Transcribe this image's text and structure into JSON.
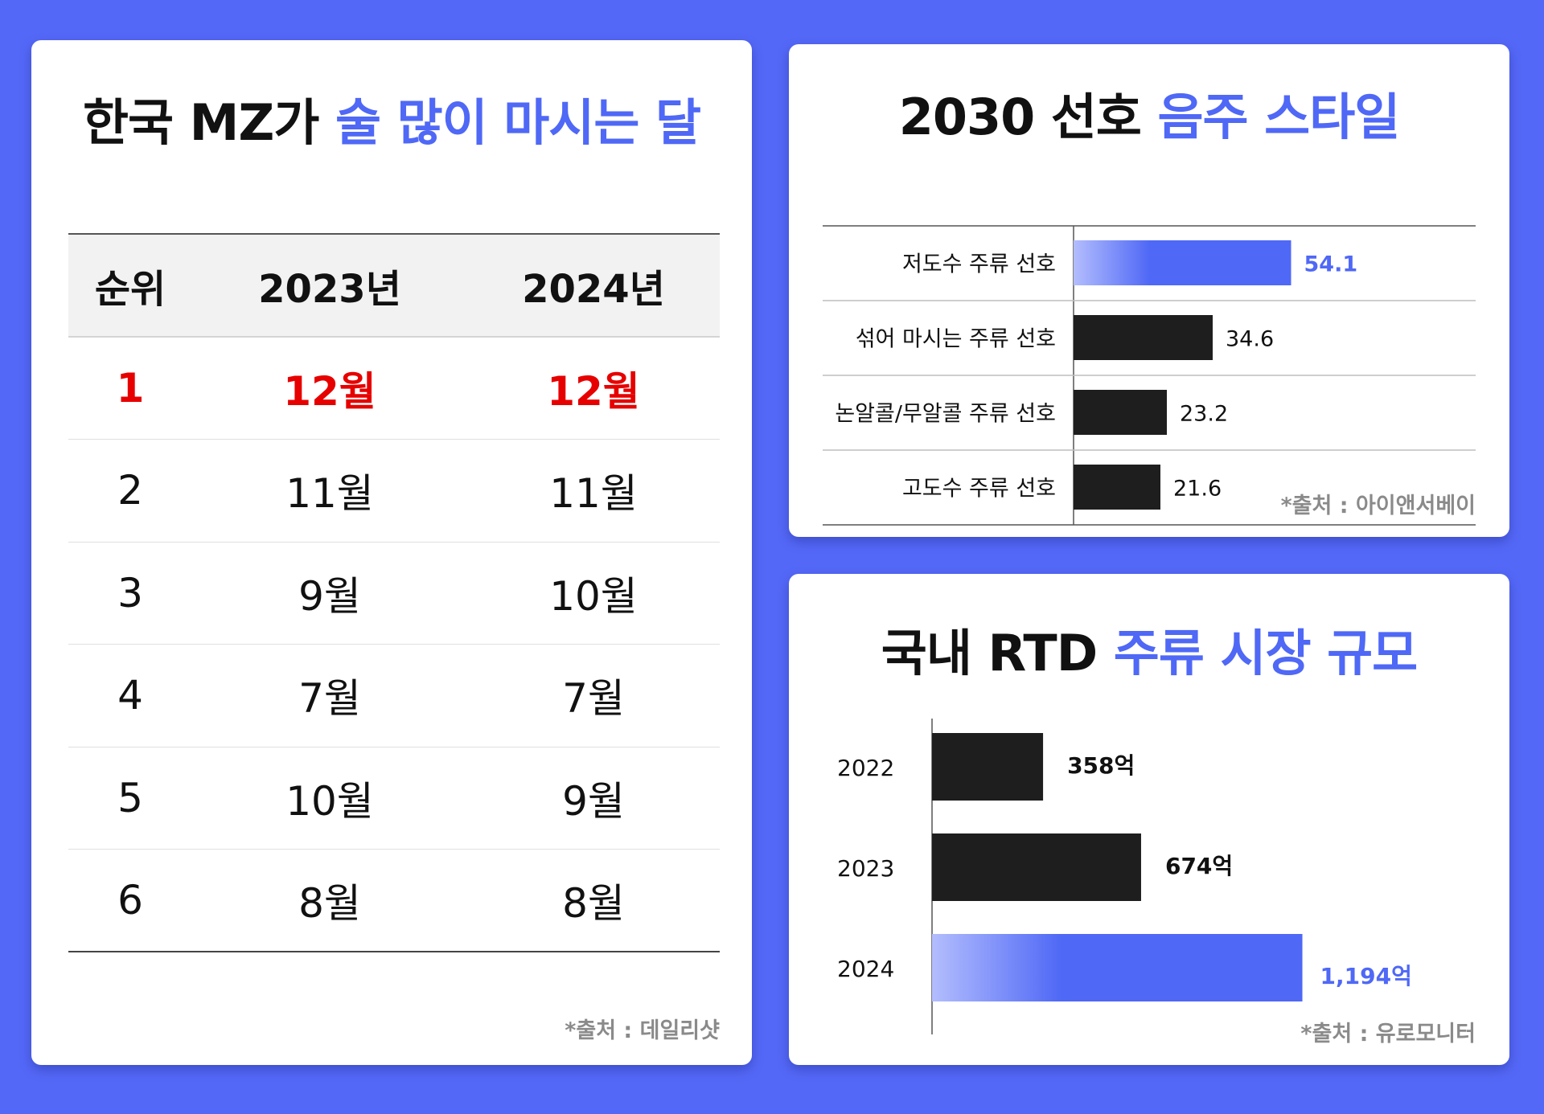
{
  "table_card": {
    "title": "한국 MZ가",
    "title_accent": "술 많이 마시는 달",
    "headers": [
      "순위",
      "2023년",
      "2024년"
    ],
    "rows": [
      [
        "1",
        "12월",
        "12월"
      ],
      [
        "2",
        "11월",
        "11월"
      ],
      [
        "3",
        "9월",
        "10월"
      ],
      [
        "4",
        "7월",
        "7월"
      ],
      [
        "5",
        "10월",
        "9월"
      ],
      [
        "6",
        "8월",
        "8월"
      ]
    ],
    "source": "*출처 : 데일리샷"
  },
  "style_card": {
    "title": "2030 선호",
    "title_accent": "음주 스타일",
    "source": "*출처 : 아이앤서베이"
  },
  "rtd_card": {
    "title": "국내 RTD",
    "title_accent": "주류 시장 규모",
    "source": "*출처 : 유로모니터"
  },
  "colors": {
    "background": "#5468f7",
    "accent": "#4f68f6",
    "bar_dark": "#1e1e1e",
    "highlight_red": "#e60000"
  },
  "chart_data": [
    {
      "type": "table",
      "title": "한국 MZ가 술 많이 마시는 달",
      "columns": [
        "순위",
        "2023년",
        "2024년"
      ],
      "rows": [
        [
          "1",
          "12월",
          "12월"
        ],
        [
          "2",
          "11월",
          "11월"
        ],
        [
          "3",
          "9월",
          "10월"
        ],
        [
          "4",
          "7월",
          "7월"
        ],
        [
          "5",
          "10월",
          "9월"
        ],
        [
          "6",
          "8월",
          "8월"
        ]
      ]
    },
    {
      "type": "bar",
      "orientation": "horizontal",
      "title": "2030 선호 음주 스타일",
      "categories": [
        "저도수 주류 선호",
        "섞어 마시는 주류 선호",
        "논알콜/무알콜 주류 선호",
        "고도수 주류 선호"
      ],
      "values": [
        54.1,
        34.6,
        23.2,
        21.6
      ],
      "value_labels": [
        "54.1",
        "34.6",
        "23.2",
        "21.6"
      ],
      "highlight_index": 0,
      "xlim": [
        0,
        100
      ]
    },
    {
      "type": "bar",
      "orientation": "horizontal",
      "title": "국내 RTD 주류 시장 규모",
      "categories": [
        "2022",
        "2023",
        "2024"
      ],
      "values": [
        358,
        674,
        1194
      ],
      "value_labels": [
        "358억",
        "674억",
        "1,194억"
      ],
      "highlight_index": 2,
      "xlim": [
        0,
        1400
      ]
    }
  ]
}
